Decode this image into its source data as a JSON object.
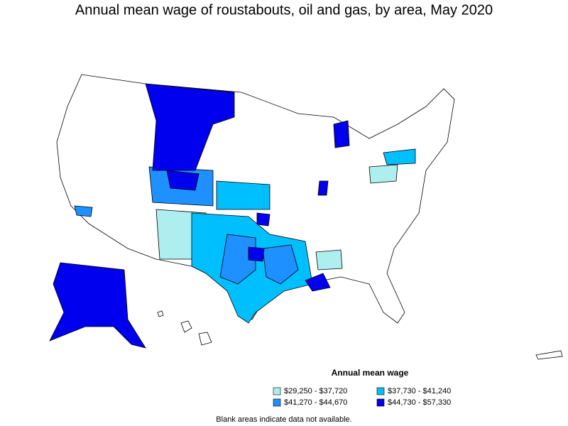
{
  "title": "Annual mean wage of roustabouts, oil and gas, by area, May 2020",
  "legend": {
    "title": "Annual mean wage",
    "items": [
      {
        "label": "$29,250 - $37,720",
        "color": "#aeeeee"
      },
      {
        "label": "$37,730 - $41,240",
        "color": "#00bfff"
      },
      {
        "label": "$41,270 - $44,670",
        "color": "#1e90ff"
      },
      {
        "label": "$44,730 - $57,330",
        "color": "#0000ee"
      }
    ]
  },
  "footnote": "Blank areas indicate data not available."
}
